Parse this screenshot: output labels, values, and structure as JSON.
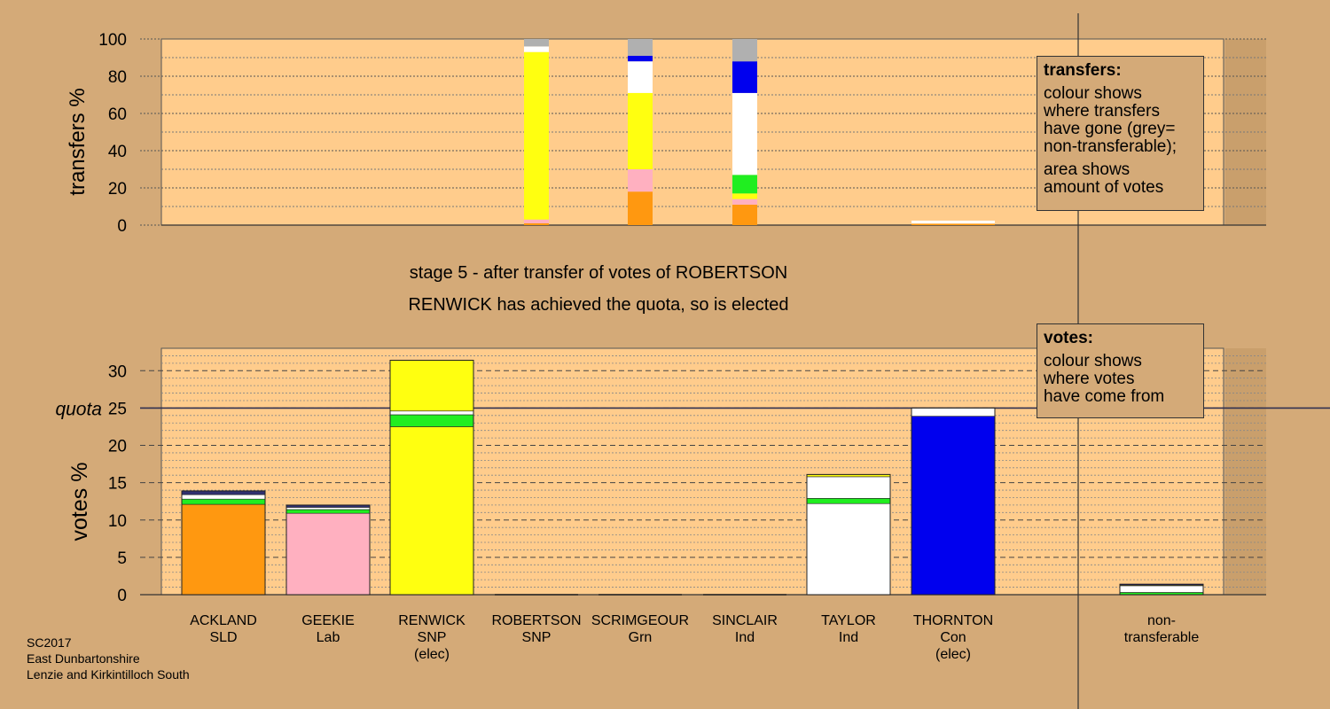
{
  "stage_title": "stage 5 - after transfer of votes of ROBERTSON",
  "stage_subtitle": "RENWICK has achieved the quota, so is elected",
  "footer": [
    "SC2017",
    "East Dunbartonshire",
    "Lenzie and Kirkintilloch South"
  ],
  "legend_transfers": {
    "title": "transfers:",
    "p1": [
      "colour shows",
      "where transfers",
      "have gone (grey=",
      "non-transferable);"
    ],
    "p2": [
      "area shows",
      "amount of votes"
    ]
  },
  "legend_votes": {
    "title": "votes:",
    "p1": [
      "colour shows",
      "where votes",
      "have come from"
    ]
  },
  "colors": {
    "SLD": "#ff9810",
    "Lab": "#ffb0c0",
    "SNP": "#ffff10",
    "Grn": "#20ee20",
    "Ind": "#ffffff",
    "Con": "#0000ee",
    "Oth": "#303070",
    "NT": "#b0b0b0",
    "background": "#d4aa78",
    "plot": "#ffcc8c"
  },
  "chart_data": [
    {
      "type": "bar",
      "name": "transfers",
      "ylabel": "transfers %",
      "ylim": [
        0,
        100
      ],
      "yticks": [
        0,
        20,
        40,
        60,
        80,
        100
      ],
      "grid": true,
      "columns": [
        {
          "col": 3,
          "segments": [
            {
              "party": "SLD",
              "value": 1
            },
            {
              "party": "Lab",
              "value": 2
            },
            {
              "party": "SNP",
              "value": 90
            },
            {
              "party": "Ind",
              "value": 3
            },
            {
              "party": "NT",
              "value": 4
            }
          ]
        },
        {
          "col": 4,
          "segments": [
            {
              "party": "SLD",
              "value": 18
            },
            {
              "party": "Lab",
              "value": 12
            },
            {
              "party": "SNP",
              "value": 41
            },
            {
              "party": "Ind",
              "value": 17
            },
            {
              "party": "Con",
              "value": 3
            },
            {
              "party": "NT",
              "value": 9
            }
          ]
        },
        {
          "col": 5,
          "segments": [
            {
              "party": "SLD",
              "value": 11
            },
            {
              "party": "Lab",
              "value": 3
            },
            {
              "party": "SNP",
              "value": 3
            },
            {
              "party": "Grn",
              "value": 10
            },
            {
              "party": "Ind",
              "value": 44
            },
            {
              "party": "Con",
              "value": 17
            },
            {
              "party": "NT",
              "value": 12
            }
          ]
        },
        {
          "col": 7,
          "width": "wide",
          "segments": [
            {
              "party": "SLD",
              "value": 0.8
            },
            {
              "party": "Ind",
              "value": 1.6
            }
          ]
        }
      ]
    },
    {
      "type": "bar",
      "name": "votes",
      "ylabel": "votes %",
      "ylim": [
        0,
        33
      ],
      "yticks": [
        0,
        5,
        10,
        15,
        20,
        25,
        30
      ],
      "quota": 25,
      "quota_label": "quota",
      "grid": true,
      "categories": [
        {
          "name": "ACKLAND",
          "party": "SLD",
          "note": ""
        },
        {
          "name": "GEEKIE",
          "party": "Lab",
          "note": ""
        },
        {
          "name": "RENWICK",
          "party": "SNP",
          "note": "(elec)"
        },
        {
          "name": "ROBERTSON",
          "party": "SNP",
          "note": ""
        },
        {
          "name": "SCRIMGEOUR",
          "party": "Grn",
          "note": ""
        },
        {
          "name": "SINCLAIR",
          "party": "Ind",
          "note": ""
        },
        {
          "name": "TAYLOR",
          "party": "Ind",
          "note": ""
        },
        {
          "name": "THORNTON",
          "party": "Con",
          "note": "(elec)"
        },
        {
          "name": "non-",
          "party": "transferable",
          "note": ""
        }
      ],
      "bars": [
        {
          "col": 0,
          "segments": [
            {
              "party": "SLD",
              "value": 12.1
            },
            {
              "party": "Grn",
              "value": 0.7
            },
            {
              "party": "Ind",
              "value": 0.6
            },
            {
              "party": "Oth",
              "value": 0.5
            }
          ]
        },
        {
          "col": 1,
          "segments": [
            {
              "party": "Lab",
              "value": 10.9
            },
            {
              "party": "Grn",
              "value": 0.5
            },
            {
              "party": "Ind",
              "value": 0.3
            },
            {
              "party": "Oth",
              "value": 0.3
            }
          ]
        },
        {
          "col": 2,
          "segments": [
            {
              "party": "SNP",
              "value": 22.5
            },
            {
              "party": "Grn",
              "value": 1.6
            },
            {
              "party": "Ind",
              "value": 0.5
            },
            {
              "party": "SNP",
              "value": 6.8
            }
          ]
        },
        {
          "col": 3,
          "segments": [
            {
              "party": "SNP",
              "value": 0
            }
          ]
        },
        {
          "col": 4,
          "segments": [
            {
              "party": "Grn",
              "value": 0
            }
          ]
        },
        {
          "col": 5,
          "segments": [
            {
              "party": "Ind",
              "value": 0
            }
          ]
        },
        {
          "col": 6,
          "segments": [
            {
              "party": "Ind",
              "value": 12.2
            },
            {
              "party": "Grn",
              "value": 0.7
            },
            {
              "party": "Ind",
              "value": 2.9
            },
            {
              "party": "SNP",
              "value": 0.3
            }
          ]
        },
        {
          "col": 7,
          "segments": [
            {
              "party": "Con",
              "value": 23.9
            },
            {
              "party": "Ind",
              "value": 1.1
            }
          ]
        },
        {
          "col": 8,
          "width": "wide",
          "segments": [
            {
              "party": "Grn",
              "value": 0.3
            },
            {
              "party": "Ind",
              "value": 0.9
            },
            {
              "party": "SNP",
              "value": 0.1
            },
            {
              "party": "Con",
              "value": 0.1
            }
          ]
        }
      ]
    }
  ]
}
